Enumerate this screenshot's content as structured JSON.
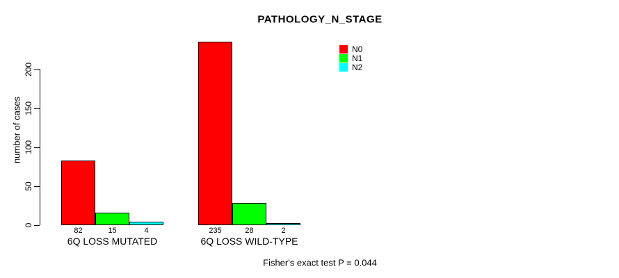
{
  "title": "PATHOLOGY_N_STAGE",
  "ylabel": "number of cases",
  "footer": "Fisher's exact test P = 0.044",
  "legend": {
    "position": "top-right",
    "items": [
      {
        "label": "N0",
        "color": "#FF0000"
      },
      {
        "label": "N1",
        "color": "#00FF00"
      },
      {
        "label": "N2",
        "color": "#00FFFF"
      }
    ]
  },
  "chart_data": {
    "type": "bar",
    "title": "PATHOLOGY_N_STAGE",
    "xlabel": "",
    "ylabel": "number of cases",
    "categories": [
      "6Q LOSS MUTATED",
      "6Q LOSS WILD-TYPE"
    ],
    "series": [
      {
        "name": "N0",
        "color": "#FF0000",
        "values": [
          82,
          235
        ]
      },
      {
        "name": "N1",
        "color": "#00FF00",
        "values": [
          15,
          28
        ]
      },
      {
        "name": "N2",
        "color": "#00FFFF",
        "values": [
          4,
          2
        ]
      }
    ],
    "value_labels": [
      [
        "82",
        "15",
        "4"
      ],
      [
        "235",
        "28",
        "2"
      ]
    ],
    "yticks": [
      0,
      50,
      100,
      150,
      200
    ],
    "ylim": [
      0,
      240
    ],
    "grid": false,
    "legend_position": "top-right",
    "annotation": "Fisher's exact test P = 0.044"
  }
}
